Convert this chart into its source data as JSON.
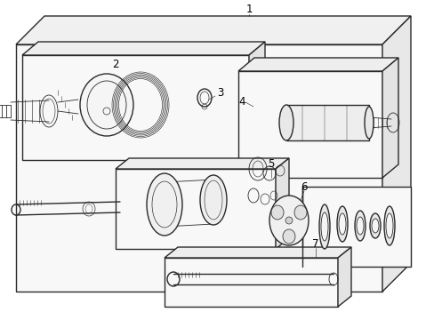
{
  "bg_color": "#ffffff",
  "line_color": "#2a2a2a",
  "label_color": "#000000",
  "lw_main": 1.0,
  "lw_thin": 0.6,
  "figsize": [
    4.89,
    3.6
  ],
  "dpi": 100
}
